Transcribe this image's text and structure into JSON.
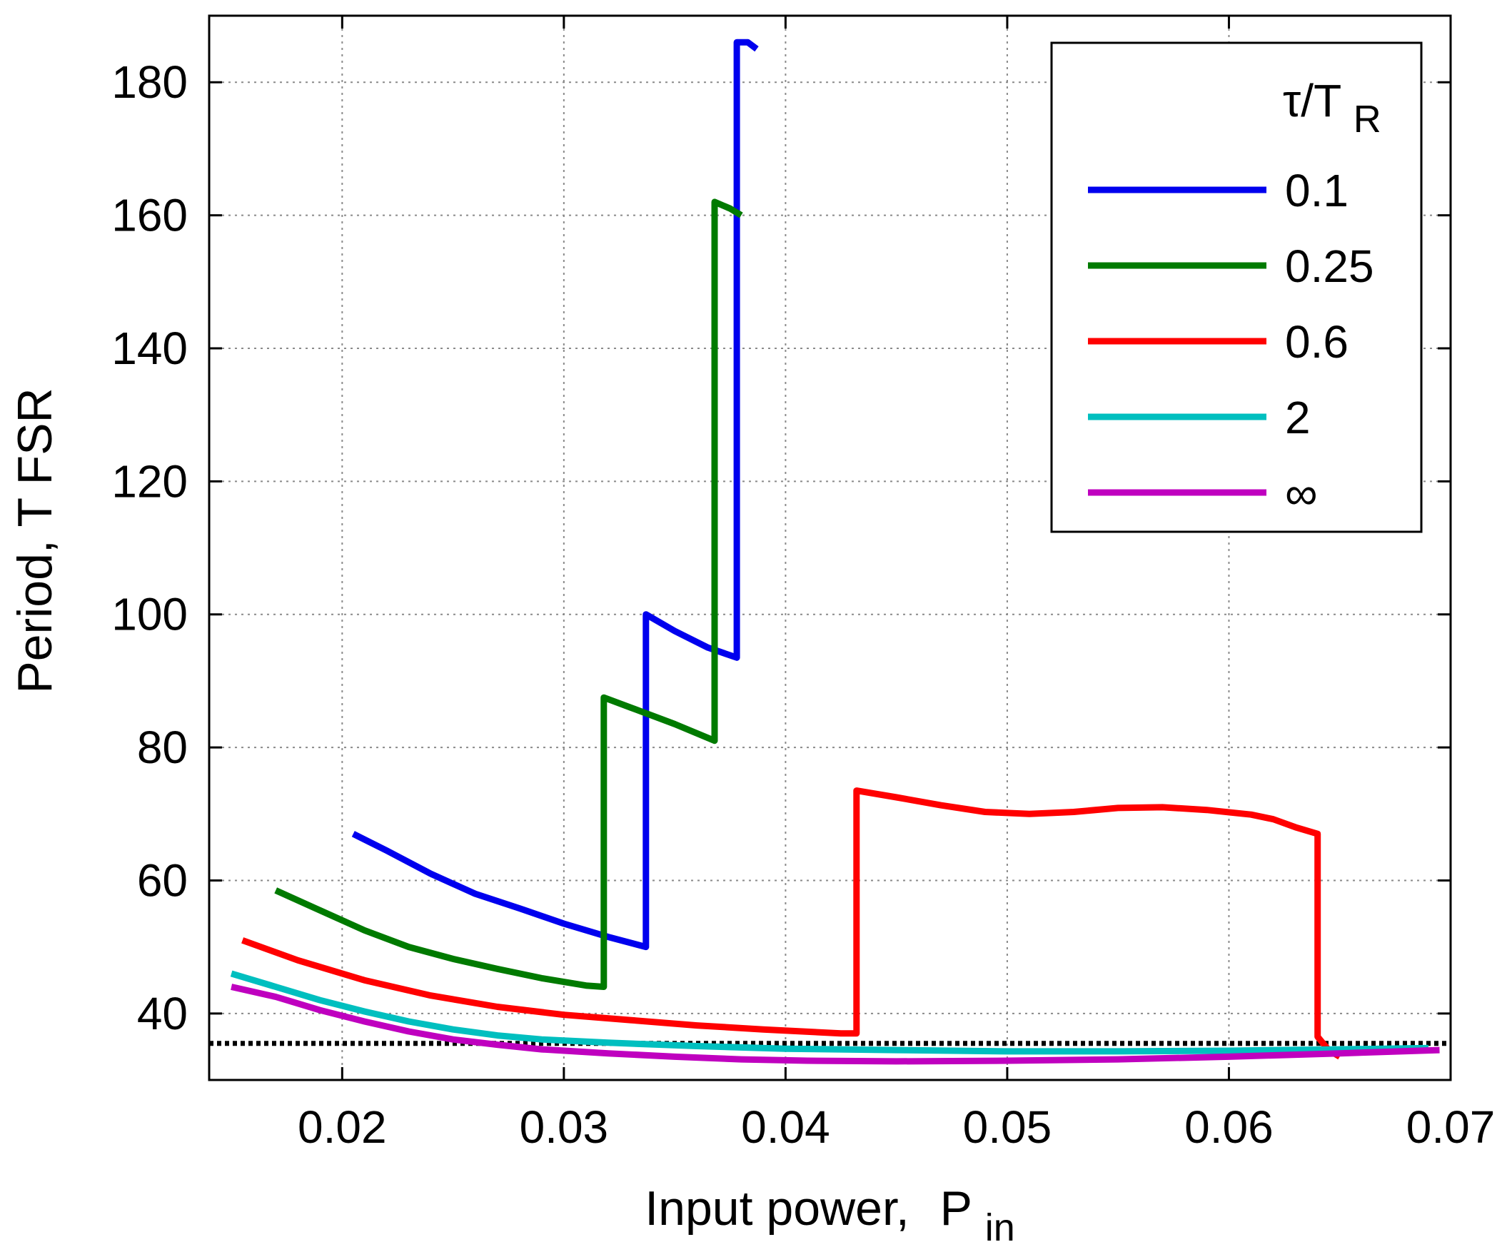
{
  "chart_data": {
    "type": "line",
    "title": "",
    "xlabel": "Input power,",
    "xlabel_sub_main": "P",
    "xlabel_sub": "in",
    "ylabel": "Period,  T FSR",
    "xlim": [
      0.014,
      0.07
    ],
    "ylim": [
      30,
      190
    ],
    "x_ticks": [
      0.02,
      0.03,
      0.04,
      0.05,
      0.06,
      0.07
    ],
    "x_tick_labels": [
      "0.02",
      "0.03",
      "0.04",
      "0.05",
      "0.06",
      "0.07"
    ],
    "y_ticks": [
      40,
      60,
      80,
      100,
      120,
      140,
      160,
      180
    ],
    "y_tick_labels": [
      "40",
      "60",
      "80",
      "100",
      "120",
      "140",
      "160",
      "180"
    ],
    "grid": true,
    "legend_position": "top-right",
    "legend_title_main": "τ/T",
    "legend_title_sub": "R",
    "reference_line": {
      "y": 35.5,
      "style": "dotted",
      "color": "#000000"
    },
    "series": [
      {
        "name": "0.1",
        "color": "#0000ee",
        "points": [
          [
            0.0205,
            67
          ],
          [
            0.022,
            64.5
          ],
          [
            0.024,
            61
          ],
          [
            0.026,
            58
          ],
          [
            0.028,
            55.8
          ],
          [
            0.03,
            53.5
          ],
          [
            0.032,
            51.5
          ],
          [
            0.0337,
            50
          ],
          [
            0.0337,
            100
          ],
          [
            0.035,
            97.5
          ],
          [
            0.0365,
            95
          ],
          [
            0.0378,
            93.5
          ],
          [
            0.0378,
            186
          ],
          [
            0.0383,
            186
          ],
          [
            0.0387,
            185
          ]
        ]
      },
      {
        "name": "0.25",
        "color": "#007a00",
        "points": [
          [
            0.017,
            58.5
          ],
          [
            0.019,
            55.5
          ],
          [
            0.021,
            52.5
          ],
          [
            0.023,
            50
          ],
          [
            0.025,
            48.2
          ],
          [
            0.027,
            46.7
          ],
          [
            0.029,
            45.3
          ],
          [
            0.031,
            44.2
          ],
          [
            0.0318,
            44
          ],
          [
            0.0318,
            87.5
          ],
          [
            0.033,
            86
          ],
          [
            0.035,
            83.5
          ],
          [
            0.0368,
            81
          ],
          [
            0.0368,
            162
          ],
          [
            0.0375,
            161
          ],
          [
            0.038,
            160
          ]
        ]
      },
      {
        "name": "0.6",
        "color": "#ff0000",
        "points": [
          [
            0.0155,
            51
          ],
          [
            0.018,
            48
          ],
          [
            0.021,
            45
          ],
          [
            0.024,
            42.7
          ],
          [
            0.027,
            41
          ],
          [
            0.03,
            39.8
          ],
          [
            0.033,
            39
          ],
          [
            0.036,
            38.2
          ],
          [
            0.039,
            37.6
          ],
          [
            0.0425,
            37
          ],
          [
            0.0432,
            37
          ],
          [
            0.0432,
            73.5
          ],
          [
            0.045,
            72.5
          ],
          [
            0.047,
            71.3
          ],
          [
            0.049,
            70.3
          ],
          [
            0.051,
            70
          ],
          [
            0.053,
            70.3
          ],
          [
            0.055,
            70.9
          ],
          [
            0.057,
            71
          ],
          [
            0.059,
            70.6
          ],
          [
            0.061,
            69.9
          ],
          [
            0.062,
            69.2
          ],
          [
            0.063,
            68
          ],
          [
            0.064,
            67
          ],
          [
            0.064,
            36.5
          ],
          [
            0.0645,
            34.5
          ],
          [
            0.065,
            33.5
          ]
        ]
      },
      {
        "name": "2",
        "color": "#00bfbf",
        "points": [
          [
            0.015,
            46
          ],
          [
            0.017,
            44
          ],
          [
            0.019,
            42
          ],
          [
            0.021,
            40.3
          ],
          [
            0.023,
            38.8
          ],
          [
            0.025,
            37.6
          ],
          [
            0.027,
            36.7
          ],
          [
            0.029,
            36.1
          ],
          [
            0.032,
            35.6
          ],
          [
            0.036,
            35.1
          ],
          [
            0.04,
            34.7
          ],
          [
            0.045,
            34.5
          ],
          [
            0.05,
            34.3
          ],
          [
            0.055,
            34.3
          ],
          [
            0.06,
            34.4
          ],
          [
            0.065,
            34.6
          ],
          [
            0.069,
            34.8
          ]
        ]
      },
      {
        "name": "∞",
        "color": "#bf00bf",
        "points": [
          [
            0.015,
            44
          ],
          [
            0.017,
            42.5
          ],
          [
            0.019,
            40.5
          ],
          [
            0.021,
            38.8
          ],
          [
            0.023,
            37.3
          ],
          [
            0.025,
            36.1
          ],
          [
            0.027,
            35.3
          ],
          [
            0.029,
            34.6
          ],
          [
            0.032,
            34
          ],
          [
            0.035,
            33.5
          ],
          [
            0.038,
            33.1
          ],
          [
            0.041,
            32.9
          ],
          [
            0.045,
            32.8
          ],
          [
            0.05,
            32.9
          ],
          [
            0.055,
            33.1
          ],
          [
            0.06,
            33.5
          ],
          [
            0.065,
            34
          ],
          [
            0.0695,
            34.5
          ]
        ]
      }
    ]
  }
}
